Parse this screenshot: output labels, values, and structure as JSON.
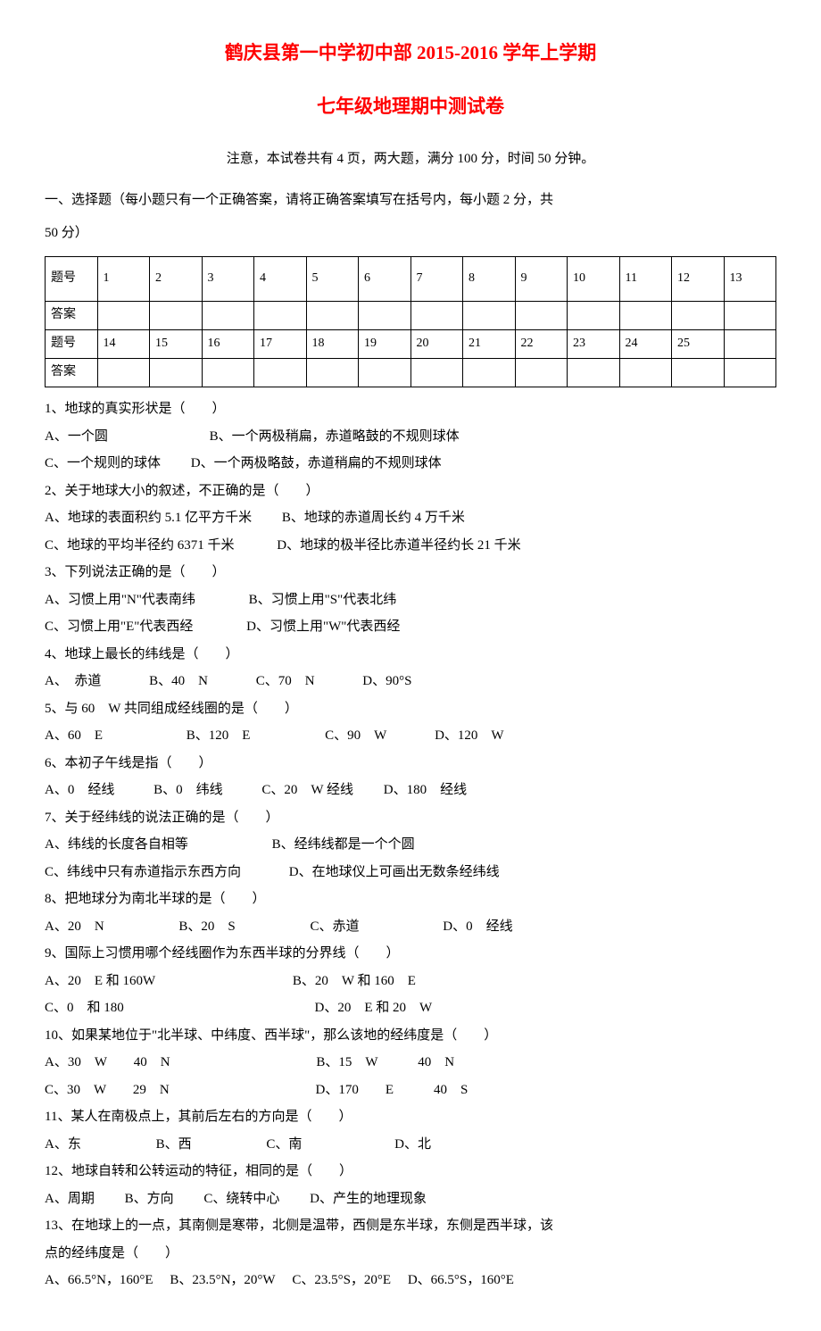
{
  "title": {
    "main": "鹤庆县第一中学初中部 2015-2016 学年上学期",
    "sub": "七年级地理期中测试卷"
  },
  "notice": "注意，本试卷共有 4 页，两大题，满分 100 分，时间 50 分钟。",
  "section1": {
    "header": "一、选择题（每小题只有一个正确答案，请将正确答案填写在括号内，每小题 2 分，共",
    "score_note": "50 分）"
  },
  "grid": {
    "row1_label": "题号",
    "row1_nums": [
      "1",
      "2",
      "3",
      "4",
      "5",
      "6",
      "7",
      "8",
      "9",
      "10",
      "11",
      "12",
      "13"
    ],
    "row2_label": "答案",
    "row3_label": "题号",
    "row3_nums": [
      "14",
      "15",
      "16",
      "17",
      "18",
      "19",
      "20",
      "21",
      "22",
      "23",
      "24",
      "25",
      ""
    ],
    "row4_label": "答案"
  },
  "q1": {
    "stem": "1、地球的真实形状是（　　）",
    "a": "A、一个圆",
    "b": "B、一个两极稍扁，赤道略鼓的不规则球体",
    "c": "C、一个规则的球体",
    "d": "D、一个两极略鼓，赤道稍扁的不规则球体"
  },
  "q2": {
    "stem": "2、关于地球大小的叙述，不正确的是（　　）",
    "a": "A、地球的表面积约 5.1 亿平方千米",
    "b": "B、地球的赤道周长约 4 万千米",
    "c": "C、地球的平均半径约 6371 千米",
    "d": "D、地球的极半径比赤道半径约长 21 千米"
  },
  "q3": {
    "stem": "3、下列说法正确的是（　　）",
    "a": "A、习惯上用\"N\"代表南纬",
    "b": "B、习惯上用\"S\"代表北纬",
    "c": "C、习惯上用\"E\"代表西经",
    "d": "D、习惯上用\"W\"代表西经"
  },
  "q4": {
    "stem": "4、地球上最长的纬线是（　　）",
    "a": "A、　赤道",
    "b": "B、40　N",
    "c": "C、70　N",
    "d": "D、90°S"
  },
  "q5": {
    "stem": "5、与 60　W 共同组成经线圈的是（　　）",
    "a": "A、60　E",
    "b": "B、120　E",
    "c": "C、90　W",
    "d": "D、120　W"
  },
  "q6": {
    "stem": "6、本初子午线是指（　　）",
    "a": "A、0　经线",
    "b": "B、0　纬线",
    "c": "C、20　W 经线",
    "d": "D、180　经线"
  },
  "q7": {
    "stem": "7、关于经纬线的说法正确的是（　　）",
    "a": "A、纬线的长度各自相等",
    "b": "B、经纬线都是一个个圆",
    "c": "C、纬线中只有赤道指示东西方向",
    "d": "D、在地球仪上可画出无数条经纬线"
  },
  "q8": {
    "stem": "8、把地球分为南北半球的是（　　）",
    "a": "A、20　N",
    "b": "B、20　S",
    "c": "C、赤道",
    "d": "D、0　经线"
  },
  "q9": {
    "stem": "9、国际上习惯用哪个经线圈作为东西半球的分界线（　　）",
    "a": "A、20　E 和 160W",
    "b": "B、20　W 和 160　E",
    "c": "C、0　和 180",
    "d": "D、20　E 和 20　W"
  },
  "q10": {
    "stem": "10、如果某地位于\"北半球、中纬度、西半球\"，那么该地的经纬度是（　　）",
    "a": "A、30　W　　40　N",
    "b": "B、15　W　　　40　N",
    "c": "C、30　W　　29　N",
    "d": "D、170　　E　　　40　S"
  },
  "q11": {
    "stem": "11、某人在南极点上，其前后左右的方向是（　　）",
    "a": "A、东",
    "b": "B、西",
    "c": "C、南",
    "d": "D、北"
  },
  "q12": {
    "stem": "12、地球自转和公转运动的特征，相同的是（　　）",
    "a": "A、周期",
    "b": "B、方向",
    "c": "C、绕转中心",
    "d": "D、产生的地理现象"
  },
  "q13": {
    "stem1": "13、在地球上的一点，其南侧是寒带，北侧是温带，西侧是东半球，东侧是西半球，该",
    "stem2": "点的经纬度是（　　）",
    "a": "A、66.5°N，160°E",
    "b": "B、23.5°N，20°W",
    "c": "C、23.5°S，20°E",
    "d": "D、66.5°S，160°E"
  }
}
